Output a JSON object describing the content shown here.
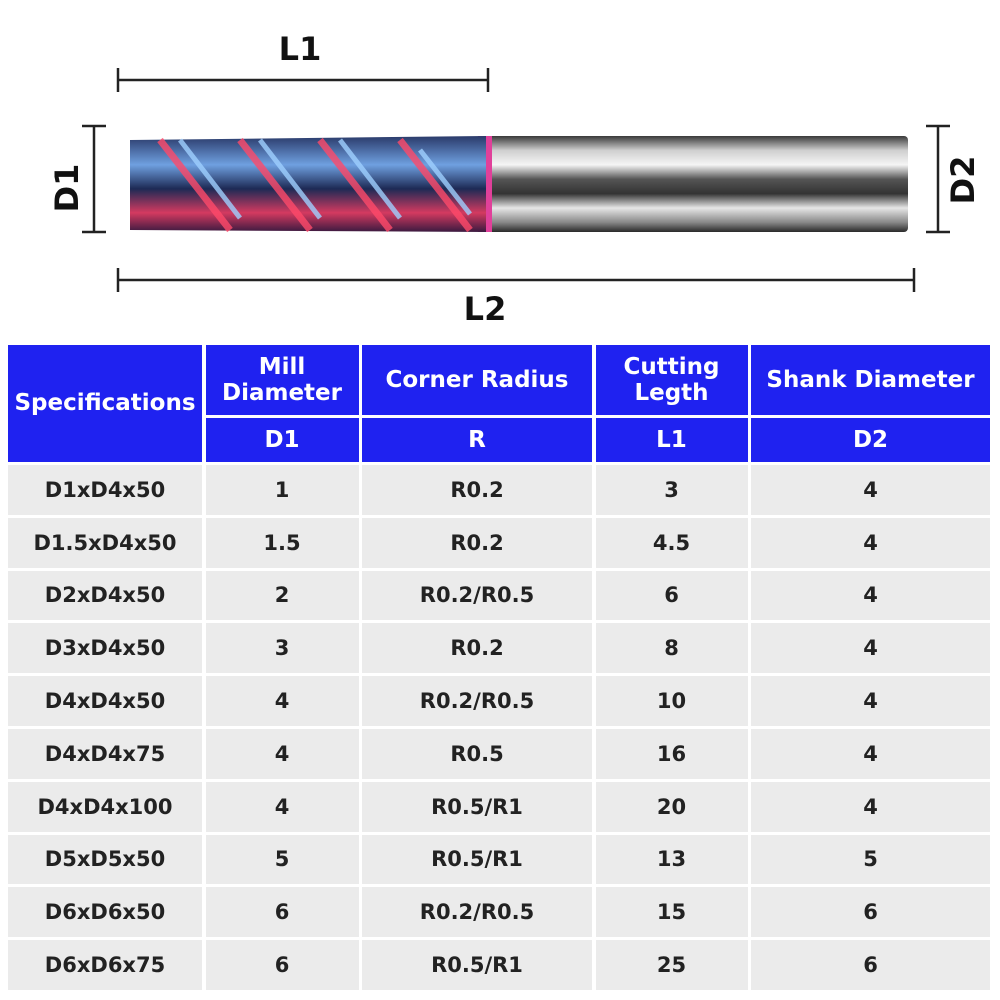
{
  "diagram": {
    "l1": "L1",
    "d1": "D1",
    "d2": "D2",
    "l2": "L2"
  },
  "table": {
    "header": {
      "spec": "Specifications",
      "columns": [
        {
          "title": "Mill Diameter",
          "symbol": "D1"
        },
        {
          "title": "Corner Radius",
          "symbol": "R"
        },
        {
          "title": "Cutting Legth",
          "symbol": "L1"
        },
        {
          "title": "Shank Diameter",
          "symbol": "D2"
        }
      ]
    },
    "rows": [
      [
        "D1xD4x50",
        "1",
        "R0.2",
        "3",
        "4"
      ],
      [
        "D1.5xD4x50",
        "1.5",
        "R0.2",
        "4.5",
        "4"
      ],
      [
        "D2xD4x50",
        "2",
        "R0.2/R0.5",
        "6",
        "4"
      ],
      [
        "D3xD4x50",
        "3",
        "R0.2",
        "8",
        "4"
      ],
      [
        "D4xD4x50",
        "4",
        "R0.2/R0.5",
        "10",
        "4"
      ],
      [
        "D4xD4x75",
        "4",
        "R0.5",
        "16",
        "4"
      ],
      [
        "D4xD4x100",
        "4",
        "R0.5/R1",
        "20",
        "4"
      ],
      [
        "D5xD5x50",
        "5",
        "R0.5/R1",
        "13",
        "5"
      ],
      [
        "D6xD6x50",
        "6",
        "R0.2/R0.5",
        "15",
        "6"
      ],
      [
        "D6xD6x75",
        "6",
        "R0.5/R1",
        "25",
        "6"
      ]
    ]
  }
}
